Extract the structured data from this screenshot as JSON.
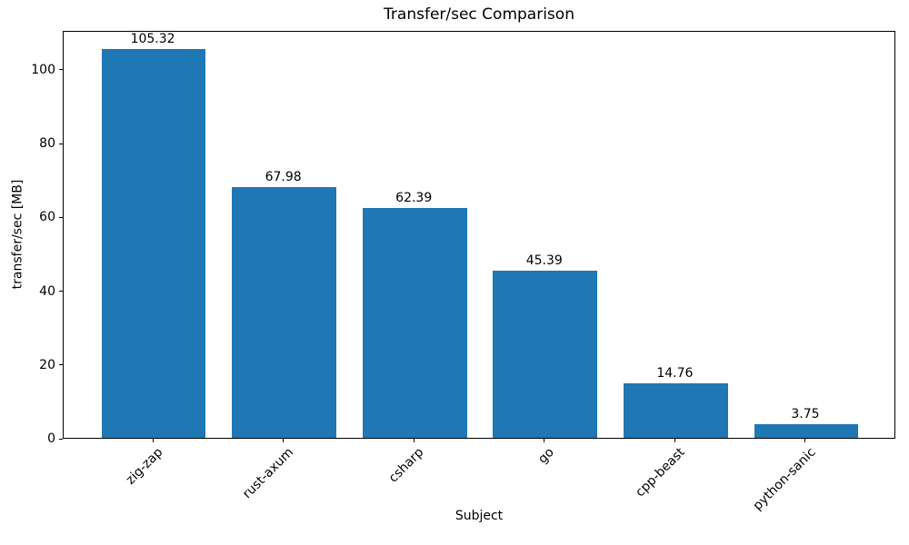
{
  "chart_data": {
    "type": "bar",
    "title": "Transfer/sec Comparison",
    "xlabel": "Subject",
    "ylabel": "transfer/sec [MB]",
    "categories": [
      "zig-zap",
      "rust-axum",
      "csharp",
      "go",
      "cpp-beast",
      "python-sanic"
    ],
    "values": [
      105.32,
      67.98,
      62.39,
      45.39,
      14.76,
      3.75
    ],
    "bar_labels": [
      "105.32",
      "67.98",
      "62.39",
      "45.39",
      "14.76",
      "3.75"
    ],
    "yticks": [
      0,
      20,
      40,
      60,
      80,
      100
    ],
    "ylim": [
      0,
      110.59
    ],
    "bar_color": "#1f77b4",
    "axis_color": "#000000",
    "text_color": "#000000",
    "background_color": "#ffffff",
    "grid": false,
    "legend": "none",
    "x_tick_rotation_deg": 45
  }
}
